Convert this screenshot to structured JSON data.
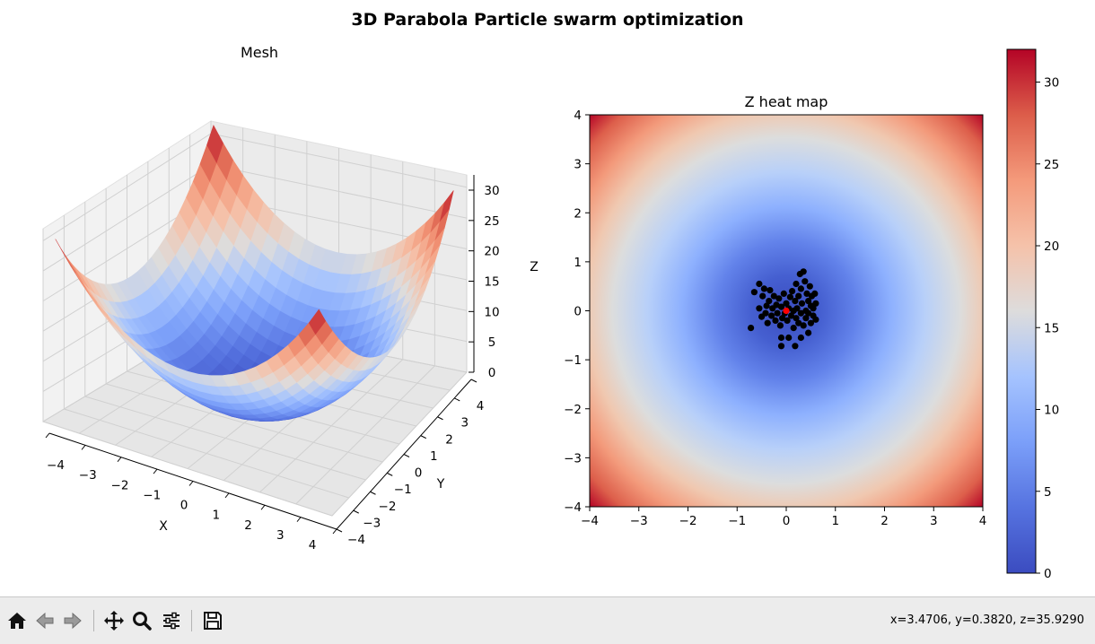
{
  "figure": {
    "suptitle": "3D Parabola Particle swarm optimization"
  },
  "colors": {
    "coolwarm_low": "#3b4cc0",
    "coolwarm_mid": "#dddddd",
    "coolwarm_high": "#b40426",
    "particle": "#000000",
    "best_particle": "#ff0000"
  },
  "chart_data": [
    {
      "type": "surface",
      "title": "Mesh",
      "xlabel": "X",
      "ylabel": "Y",
      "zlabel": "Z",
      "function": "z = x^2 + y^2",
      "x_range": [
        -4,
        4
      ],
      "y_range": [
        -4,
        4
      ],
      "z_range": [
        0,
        32
      ],
      "x_ticks": [
        -4,
        -3,
        -2,
        -1,
        0,
        1,
        2,
        3,
        4
      ],
      "y_ticks": [
        -4,
        -3,
        -2,
        -1,
        0,
        1,
        2,
        3,
        4
      ],
      "z_ticks": [
        0,
        5,
        10,
        15,
        20,
        25,
        30
      ],
      "colormap": "coolwarm",
      "grid": true
    },
    {
      "type": "heatmap",
      "title": "Z heat map",
      "function": "z = x^2 + y^2",
      "xlim": [
        -4,
        4
      ],
      "ylim": [
        -4,
        4
      ],
      "x_ticks": [
        -4,
        -3,
        -2,
        -1,
        0,
        1,
        2,
        3,
        4
      ],
      "y_ticks": [
        -4,
        -3,
        -2,
        -1,
        0,
        1,
        2,
        3,
        4
      ],
      "colormap": "coolwarm",
      "colorbar": {
        "range": [
          0,
          32
        ],
        "ticks": [
          0,
          5,
          10,
          15,
          20,
          25,
          30
        ]
      },
      "particles": [
        [
          -0.72,
          -0.35
        ],
        [
          -0.65,
          0.38
        ],
        [
          -0.55,
          0.55
        ],
        [
          -0.55,
          0.05
        ],
        [
          -0.5,
          -0.12
        ],
        [
          -0.48,
          0.3
        ],
        [
          -0.45,
          0.45
        ],
        [
          -0.42,
          -0.05
        ],
        [
          -0.4,
          0.1
        ],
        [
          -0.38,
          -0.25
        ],
        [
          -0.35,
          0.2
        ],
        [
          -0.33,
          0.42
        ],
        [
          -0.3,
          -0.1
        ],
        [
          -0.28,
          0.05
        ],
        [
          -0.25,
          0.3
        ],
        [
          -0.22,
          -0.2
        ],
        [
          -0.2,
          0.12
        ],
        [
          -0.18,
          -0.05
        ],
        [
          -0.15,
          0.25
        ],
        [
          -0.12,
          -0.3
        ],
        [
          -0.1,
          0.08
        ],
        [
          -0.08,
          -0.15
        ],
        [
          -0.05,
          0.35
        ],
        [
          -0.03,
          -0.05
        ],
        [
          0.0,
          0.15
        ],
        [
          0.02,
          -0.2
        ],
        [
          0.05,
          0.05
        ],
        [
          0.05,
          -0.55
        ],
        [
          0.08,
          0.28
        ],
        [
          0.1,
          -0.1
        ],
        [
          0.12,
          0.4
        ],
        [
          0.15,
          0.0
        ],
        [
          0.15,
          -0.35
        ],
        [
          0.18,
          0.2
        ],
        [
          0.2,
          -0.15
        ],
        [
          0.2,
          0.55
        ],
        [
          0.22,
          0.05
        ],
        [
          0.25,
          -0.25
        ],
        [
          0.25,
          0.3
        ],
        [
          0.28,
          0.75
        ],
        [
          0.3,
          -0.05
        ],
        [
          0.3,
          0.45
        ],
        [
          0.32,
          0.15
        ],
        [
          0.35,
          -0.3
        ],
        [
          0.35,
          0.8
        ],
        [
          0.38,
          0.6
        ],
        [
          0.4,
          0.0
        ],
        [
          0.4,
          -0.15
        ],
        [
          0.42,
          0.35
        ],
        [
          0.45,
          0.2
        ],
        [
          0.45,
          -0.05
        ],
        [
          0.48,
          0.5
        ],
        [
          0.5,
          0.1
        ],
        [
          0.5,
          -0.25
        ],
        [
          0.52,
          0.3
        ],
        [
          0.55,
          -0.1
        ],
        [
          0.55,
          0.05
        ],
        [
          0.58,
          0.35
        ],
        [
          0.6,
          -0.18
        ],
        [
          0.6,
          0.15
        ],
        [
          -0.1,
          -0.55
        ],
        [
          0.3,
          -0.55
        ],
        [
          0.18,
          -0.72
        ],
        [
          -0.1,
          -0.72
        ],
        [
          0.45,
          -0.45
        ]
      ],
      "best": [
        0.0,
        0.0
      ]
    }
  ],
  "toolbar": {
    "home_icon": "home-icon",
    "back_icon": "arrow-left-icon",
    "forward_icon": "arrow-right-icon",
    "pan_icon": "move-icon",
    "zoom_icon": "magnifier-icon",
    "configure_icon": "sliders-icon",
    "save_icon": "floppy-disk-icon",
    "coordinates": "x=3.4706, y=0.3820, z=35.9290"
  }
}
